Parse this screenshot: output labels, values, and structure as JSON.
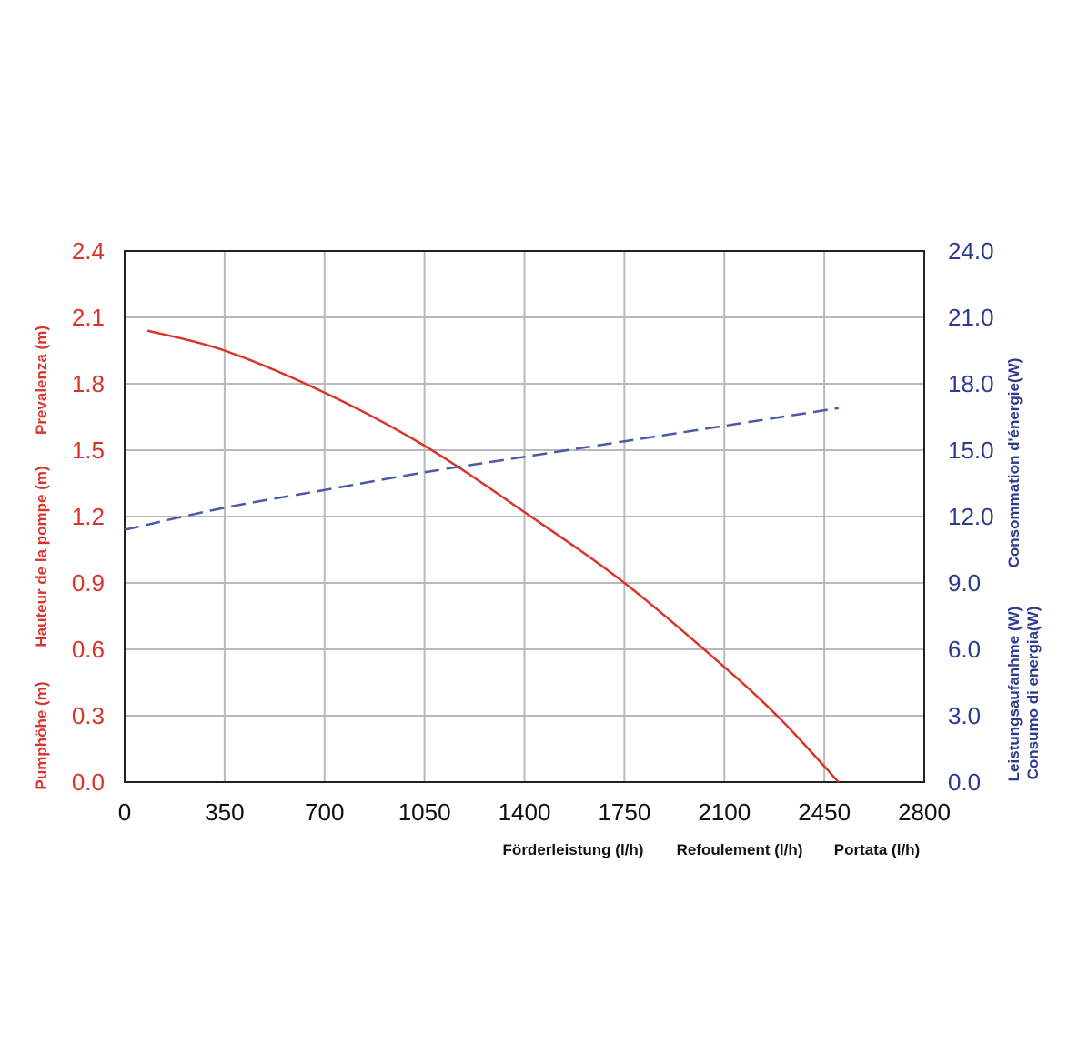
{
  "chart_data": {
    "type": "line",
    "x_axis": {
      "range": [
        0,
        2800
      ],
      "ticks": [
        "0",
        "350",
        "700",
        "1050",
        "1400",
        "1750",
        "2100",
        "2450",
        "2800"
      ],
      "labels": [
        "Förderleistung (l/h)",
        "Refoulement (l/h)",
        "Portata (l/h)"
      ]
    },
    "y_left": {
      "range": [
        0,
        2.4
      ],
      "ticks": [
        "0.0",
        "0.3",
        "0.6",
        "0.9",
        "1.2",
        "1.5",
        "1.8",
        "2.1",
        "2.4"
      ],
      "labels": [
        "Pumphöhe (m)",
        "Hauteur de la pompe (m)",
        "Prevalenza (m)"
      ],
      "color": "#d9342b"
    },
    "y_right": {
      "range": [
        0,
        24
      ],
      "ticks": [
        "0.0",
        "3.0",
        "6.0",
        "9.0",
        "12.0",
        "15.0",
        "18.0",
        "21.0",
        "24.0"
      ],
      "labels": [
        "Leistungsaufanhme (W)",
        "Consommation d'énergie(W)",
        "Consumo di energia(W)"
      ],
      "color": "#2e3a8c"
    },
    "grid": true,
    "series": [
      {
        "axis": "left",
        "style": "solid",
        "color": "#d9342b",
        "x": [
          80,
          350,
          700,
          1050,
          1400,
          1750,
          2100,
          2300,
          2500
        ],
        "y": [
          2.04,
          1.95,
          1.76,
          1.52,
          1.22,
          0.9,
          0.52,
          0.28,
          0.0
        ]
      },
      {
        "axis": "right",
        "style": "dashed",
        "color": "#4a5aa8",
        "x": [
          0,
          350,
          700,
          1050,
          1400,
          1750,
          2100,
          2500
        ],
        "y": [
          11.4,
          12.4,
          13.2,
          14.0,
          14.7,
          15.4,
          16.1,
          16.9
        ]
      }
    ]
  }
}
